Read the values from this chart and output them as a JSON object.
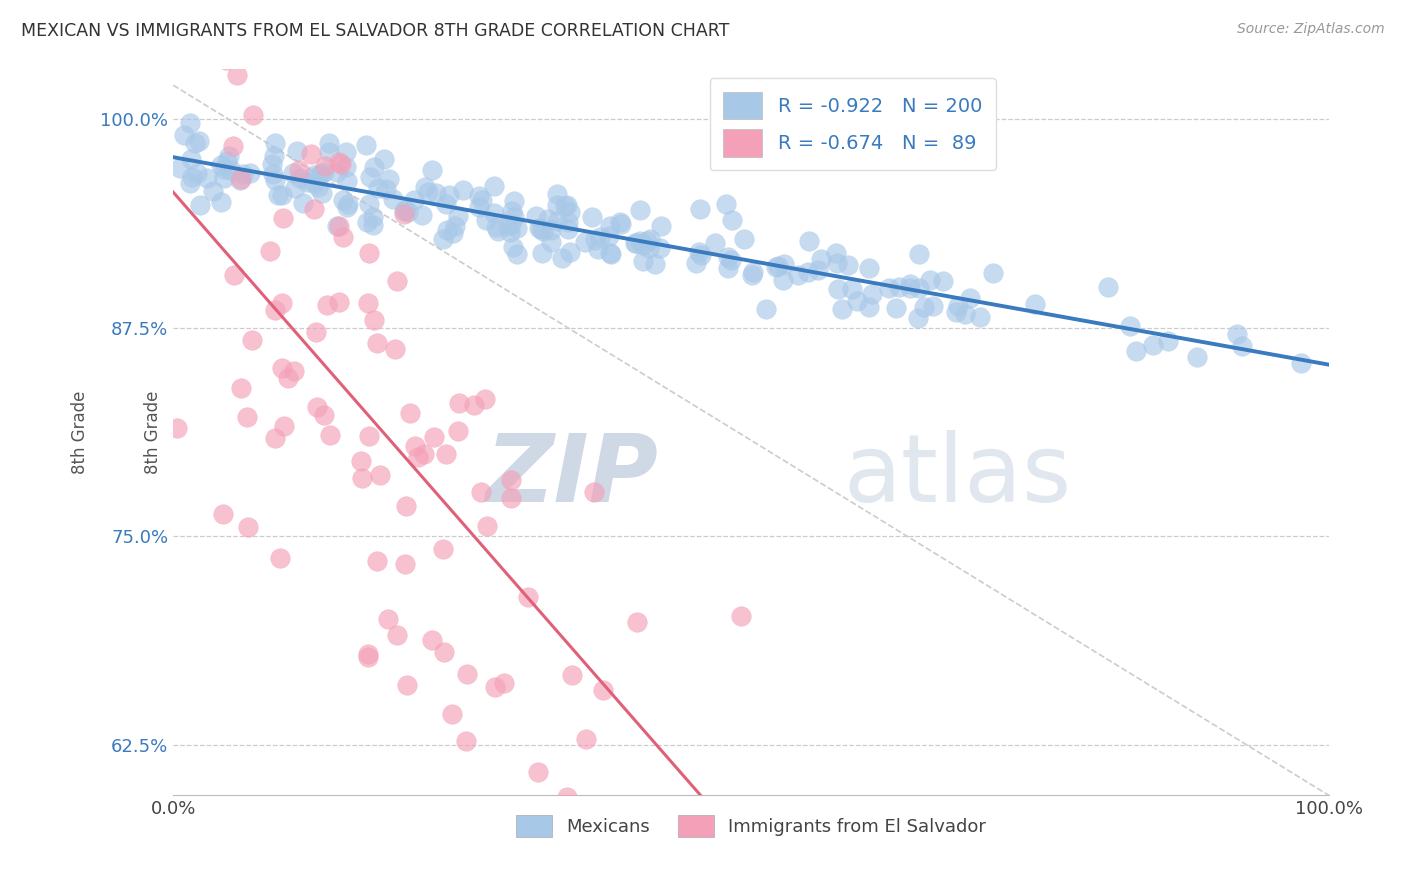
{
  "title": "MEXICAN VS IMMIGRANTS FROM EL SALVADOR 8TH GRADE CORRELATION CHART",
  "source": "Source: ZipAtlas.com",
  "ylabel": "8th Grade",
  "blue_R": -0.922,
  "blue_N": 200,
  "pink_R": -0.674,
  "pink_N": 89,
  "blue_scatter_color": "#a8c8e8",
  "blue_line_color": "#3a7abf",
  "pink_scatter_color": "#f4a0b8",
  "pink_line_color": "#e0607a",
  "legend_blue_label": "Mexicans",
  "legend_pink_label": "Immigrants from El Salvador",
  "xlim": [
    0.0,
    1.0
  ],
  "ylim": [
    0.595,
    1.03
  ],
  "yticks": [
    0.625,
    0.75,
    0.875,
    1.0
  ],
  "ytick_labels": [
    "62.5%",
    "75.0%",
    "87.5%",
    "100.0%"
  ],
  "xticks": [
    0.0,
    1.0
  ],
  "xtick_labels": [
    "0.0%",
    "100.0%"
  ],
  "grid_color": "#cccccc",
  "background_color": "#ffffff",
  "title_color": "#333333",
  "axis_label_color": "#555555",
  "watermark_zip": "ZIP",
  "watermark_atlas": "atlas",
  "watermark_color": "#ccd8e8",
  "tick_color": "#3a7abf"
}
